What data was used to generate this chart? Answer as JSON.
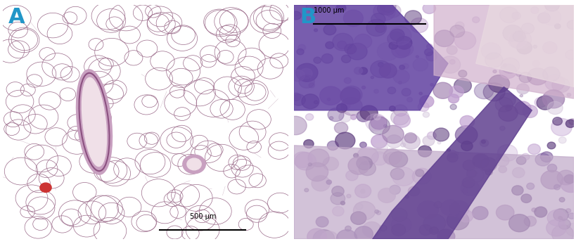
{
  "figure_width": 8.2,
  "figure_height": 3.47,
  "dpi": 100,
  "background_color": "#ffffff",
  "label_A": "A",
  "label_B": "B",
  "label_color": "#2196c8",
  "label_fontsize": 22,
  "label_fontweight": "bold",
  "scalebar_A_text": "500 μm",
  "scalebar_B_text": "1000 μm",
  "scalebar_fontsize": 7,
  "panel_A_bg": "#f2e8ec",
  "panel_B_bg": "#b090b8",
  "border_color": "#aaaaaa"
}
